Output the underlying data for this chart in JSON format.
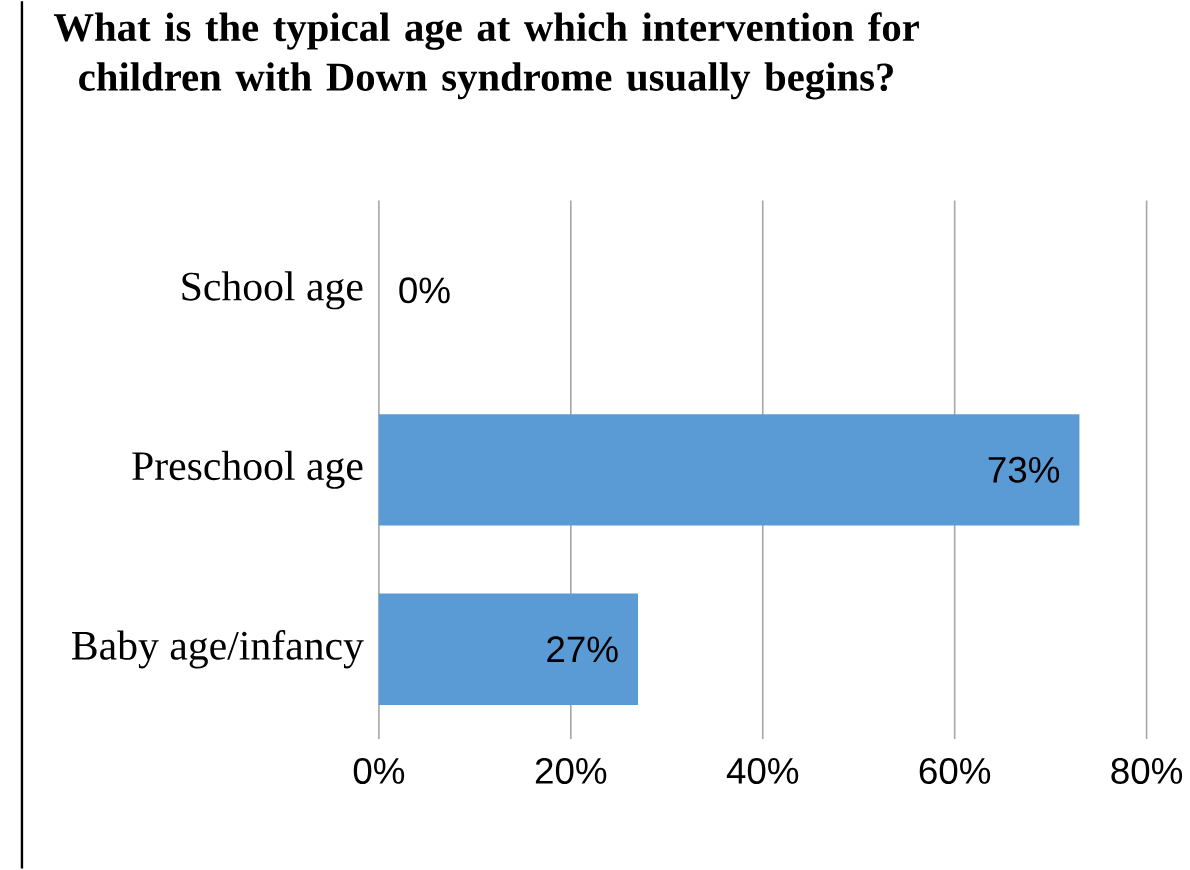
{
  "chart_data": {
    "type": "bar",
    "orientation": "horizontal",
    "title": "What is the typical age at which intervention for children with Down syndrome usually begins?",
    "categories": [
      "School age",
      "Preschool age",
      "Baby age/infancy"
    ],
    "values": [
      0,
      73,
      27
    ],
    "value_labels": [
      "0%",
      "73%",
      "27%"
    ],
    "color": "#5b9bd5",
    "xlim": [
      0,
      80
    ],
    "xticks": [
      {
        "value": 0,
        "label": "0%"
      },
      {
        "value": 20,
        "label": "20%"
      },
      {
        "value": 40,
        "label": "40%"
      },
      {
        "value": 60,
        "label": "60%"
      },
      {
        "value": 80,
        "label": "80%"
      }
    ],
    "grid": "x"
  }
}
